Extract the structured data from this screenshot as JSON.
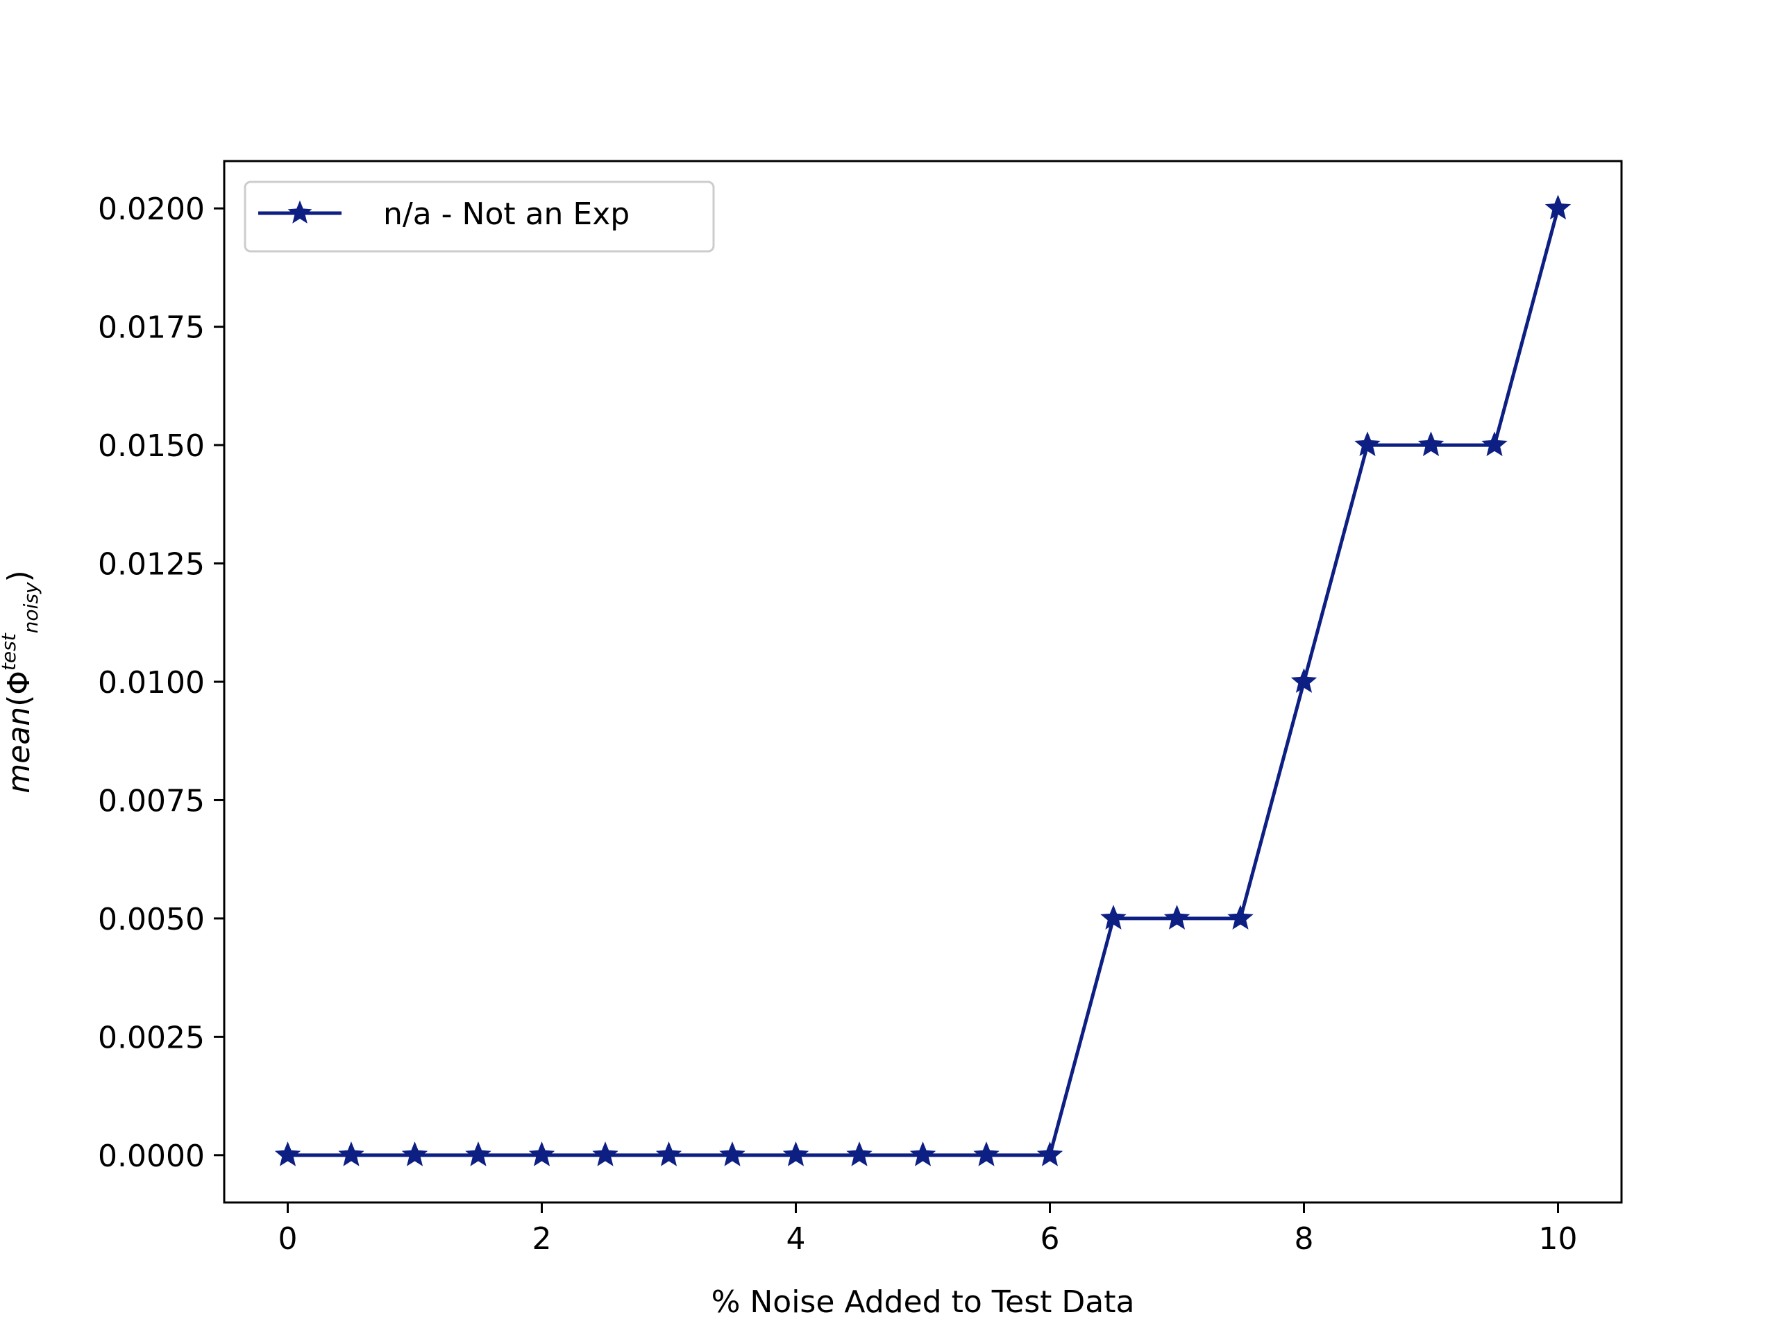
{
  "chart_data": {
    "type": "line",
    "title": "",
    "xlabel": "% Noise Added to Test Data",
    "ylabel": {
      "base": "mean(Φ",
      "sup": "test",
      "sub": "noisy",
      "close": ")"
    },
    "xlim": [
      -0.5,
      10.5
    ],
    "ylim": [
      -0.001,
      0.021
    ],
    "x_ticks": [
      0,
      2,
      4,
      6,
      8,
      10
    ],
    "x_tick_labels": [
      "0",
      "2",
      "4",
      "6",
      "8",
      "10"
    ],
    "y_ticks": [
      0.0,
      0.0025,
      0.005,
      0.0075,
      0.01,
      0.0125,
      0.015,
      0.0175,
      0.02
    ],
    "y_tick_labels": [
      "0.0000",
      "0.0025",
      "0.0050",
      "0.0075",
      "0.0100",
      "0.0125",
      "0.0150",
      "0.0175",
      "0.0200"
    ],
    "grid": false,
    "legend_position": "top-left",
    "series": [
      {
        "name": "n/a - Not an Exp",
        "color": "#0d1f82",
        "marker": "star",
        "x": [
          0,
          0.5,
          1,
          1.5,
          2,
          2.5,
          3,
          3.5,
          4,
          4.5,
          5,
          5.5,
          6,
          6.5,
          7,
          7.5,
          8,
          8.5,
          9,
          9.5,
          10
        ],
        "y": [
          0,
          0,
          0,
          0,
          0,
          0,
          0,
          0,
          0,
          0,
          0,
          0,
          0,
          0.005,
          0.005,
          0.005,
          0.01,
          0.015,
          0.015,
          0.015,
          0.02
        ]
      }
    ]
  }
}
